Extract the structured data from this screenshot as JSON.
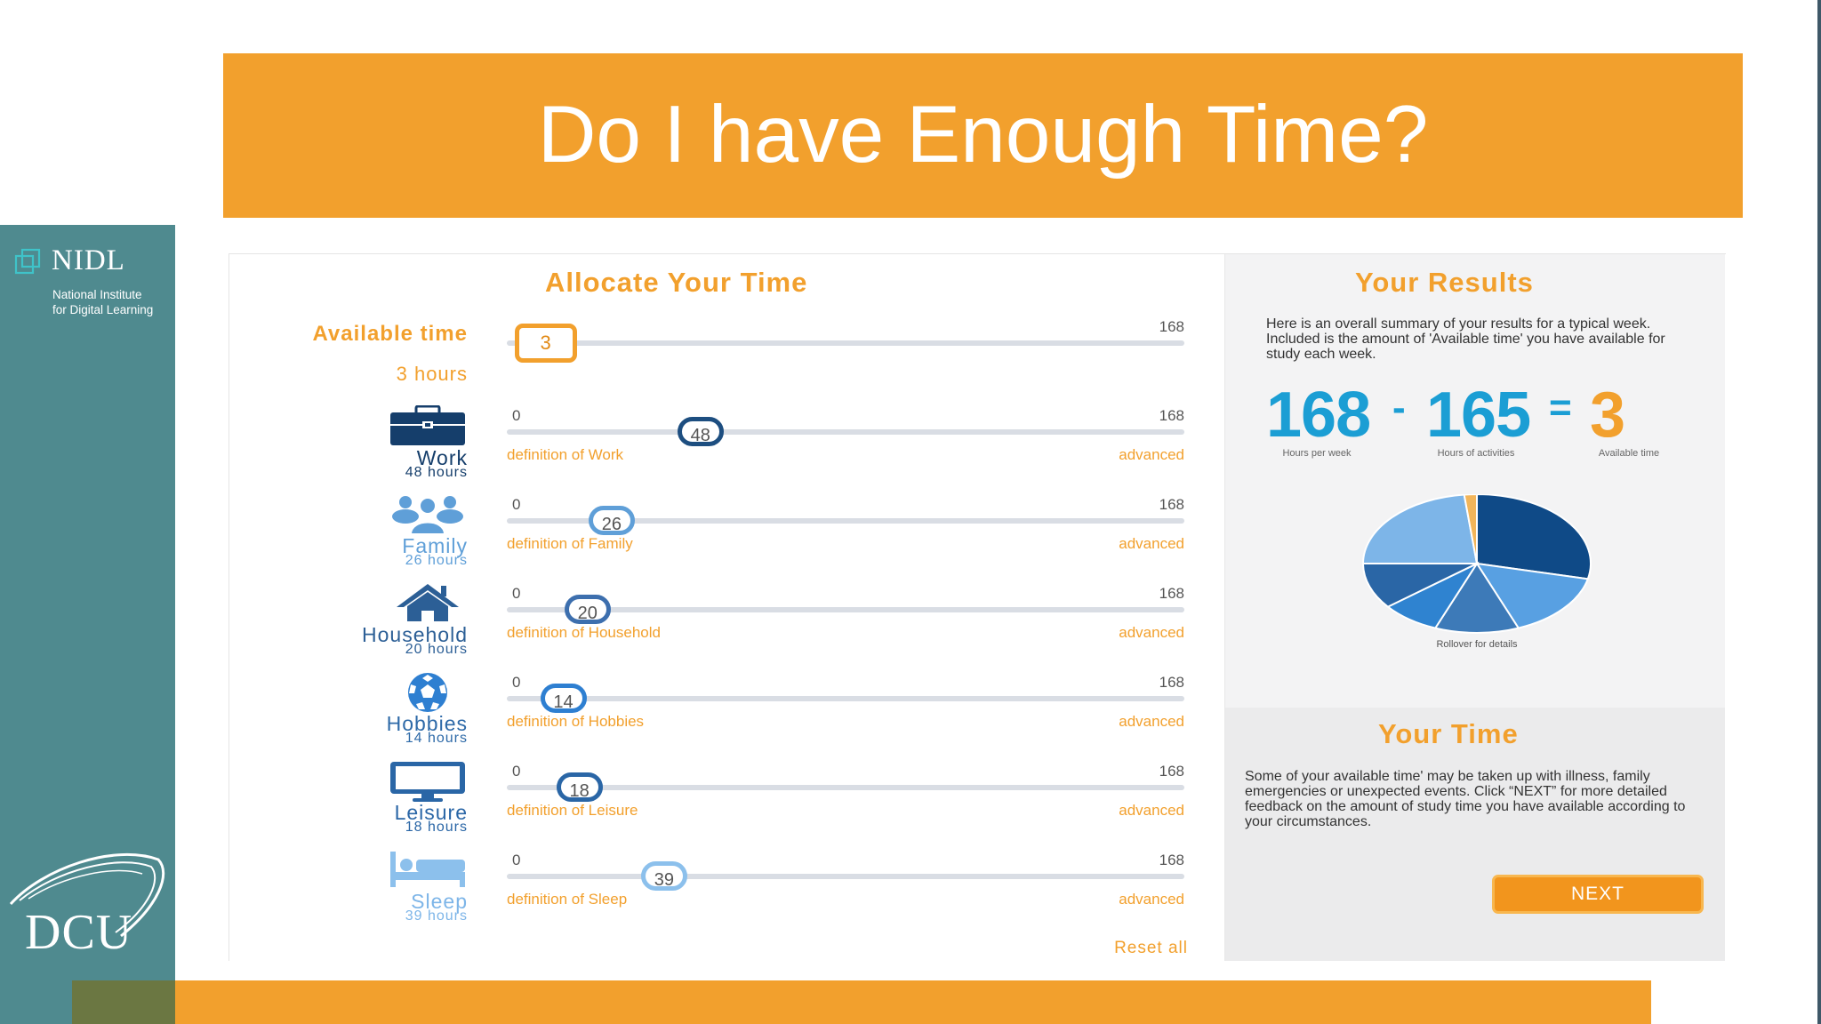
{
  "banner": {
    "title": "Do I have Enough Time?"
  },
  "logos": {
    "nidl": {
      "name": "NIDL",
      "line1": "National Institute",
      "line2": "for Digital Learning"
    },
    "dcu": {
      "name": "DCU"
    }
  },
  "colors": {
    "orange": "#f2a02d",
    "teal_sidebar": "#4f8a8f",
    "navy": "#1d4e80",
    "mid_blue": "#3d6fae",
    "light_blue": "#5f9fd8",
    "results_blue": "#1b9ed4"
  },
  "allocate": {
    "title": "Allocate Your Time",
    "available": {
      "label": "Available time",
      "hours_text": "3 hours",
      "value": 3,
      "max_label": "168",
      "max": 168
    },
    "activities": [
      {
        "key": "work",
        "name": "Work",
        "hours_text": "48 hours",
        "value": 48,
        "min_label": "0",
        "max_label": "168",
        "definition": "definition of Work",
        "advanced": "advanced",
        "icon": "briefcase-icon"
      },
      {
        "key": "family",
        "name": "Family",
        "hours_text": "26 hours",
        "value": 26,
        "min_label": "0",
        "max_label": "168",
        "definition": "definition of Family",
        "advanced": "advanced",
        "icon": "family-icon"
      },
      {
        "key": "household",
        "name": "Household",
        "hours_text": "20 hours",
        "value": 20,
        "min_label": "0",
        "max_label": "168",
        "definition": "definition of Household",
        "advanced": "advanced",
        "icon": "house-icon"
      },
      {
        "key": "hobbies",
        "name": "Hobbies",
        "hours_text": "14 hours",
        "value": 14,
        "min_label": "0",
        "max_label": "168",
        "definition": "definition of Hobbies",
        "advanced": "advanced",
        "icon": "soccer-ball-icon"
      },
      {
        "key": "leisure",
        "name": "Leisure",
        "hours_text": "18 hours",
        "value": 18,
        "min_label": "0",
        "max_label": "168",
        "definition": "definition of Leisure",
        "advanced": "advanced",
        "icon": "monitor-icon"
      },
      {
        "key": "sleep",
        "name": "Sleep",
        "hours_text": "39 hours",
        "value": 39,
        "min_label": "0",
        "max_label": "168",
        "definition": "definition of Sleep",
        "advanced": "advanced",
        "icon": "bed-icon"
      }
    ],
    "reset_label": "Reset all"
  },
  "results": {
    "title": "Your Results",
    "summary": "Here is an overall summary of your results for a typical week. Included is the amount of 'Available time' you have available for study each week.",
    "hours_per_week": "168",
    "hours_per_week_caption": "Hours per week",
    "minus": "-",
    "activities_total": "165",
    "activities_caption": "Hours of activities",
    "equals": "=",
    "available": "3",
    "available_caption": "Available time",
    "pie_caption": "Rollover for details"
  },
  "your_time": {
    "title": "Your Time",
    "body": "Some of your available time' may be taken up with illness, family emergencies or unexpected events. Click “NEXT” for more detailed feedback on the amount of study time you have available according to your circumstances.",
    "next_label": "NEXT"
  },
  "chart_data": {
    "type": "pie",
    "caption": "Rollover for details",
    "slices": [
      {
        "name": "Work",
        "value": 48,
        "color": "#0f4a87"
      },
      {
        "name": "Family",
        "value": 26,
        "color": "#58a0e2"
      },
      {
        "name": "Household",
        "value": 20,
        "color": "#3d7ab8"
      },
      {
        "name": "Hobbies",
        "value": 14,
        "color": "#2f83d0"
      },
      {
        "name": "Leisure",
        "value": 18,
        "color": "#2a66a6"
      },
      {
        "name": "Sleep",
        "value": 39,
        "color": "#7db5e8"
      },
      {
        "name": "Available time",
        "value": 3,
        "color": "#f2b55a"
      }
    ]
  }
}
